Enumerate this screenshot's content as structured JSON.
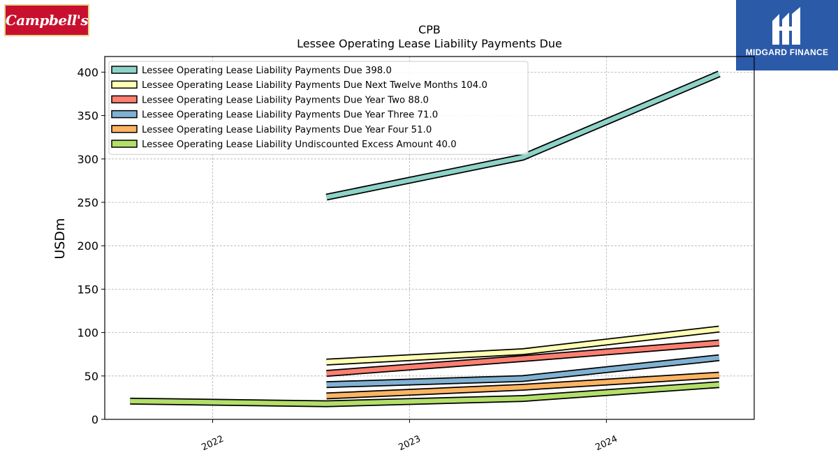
{
  "logos": {
    "left": {
      "text": "Campbell's",
      "bg": "#c8102e"
    },
    "right": {
      "text": "MIDGARD FINANCE",
      "bg": "#2b5aa8"
    }
  },
  "chart_data": {
    "type": "line",
    "title": "CPB",
    "subtitle": "Lessee Operating Lease Liability Payments Due",
    "ylabel": "USDm",
    "xlabel": "",
    "xlim": [
      "2021-06-15",
      "2024-10-01"
    ],
    "ylim": [
      0,
      418
    ],
    "yticks": [
      0,
      50,
      100,
      150,
      200,
      250,
      300,
      350,
      400
    ],
    "xticks": [
      "2022-01-01",
      "2023-01-01",
      "2024-01-01"
    ],
    "xtick_labels": [
      "2022",
      "2023",
      "2024"
    ],
    "grid": true,
    "legend_position": "top-left",
    "series": [
      {
        "name": "Lessee Operating Lease Liability Payments Due  398.0",
        "color": "#8dd3c7",
        "points": [
          [
            "2022-07-31",
            256
          ],
          [
            "2023-07-30",
            302
          ],
          [
            "2024-07-28",
            398
          ]
        ]
      },
      {
        "name": "Lessee Operating Lease Liability Payments Due Next Twelve Months  104.0",
        "color": "#ffffb3",
        "points": [
          [
            "2022-07-31",
            66
          ],
          [
            "2023-07-30",
            78
          ],
          [
            "2024-07-28",
            104
          ]
        ]
      },
      {
        "name": "Lessee Operating Lease Liability Payments Due Year Two  88.0",
        "color": "#fb8072",
        "points": [
          [
            "2022-07-31",
            53
          ],
          [
            "2023-07-30",
            70
          ],
          [
            "2024-07-28",
            88
          ]
        ]
      },
      {
        "name": "Lessee Operating Lease Liability Payments Due Year Three  71.0",
        "color": "#80b1d3",
        "points": [
          [
            "2022-07-31",
            40
          ],
          [
            "2023-07-30",
            47
          ],
          [
            "2024-07-28",
            71
          ]
        ]
      },
      {
        "name": "Lessee Operating Lease Liability Payments Due Year Four  51.0",
        "color": "#fdb462",
        "points": [
          [
            "2022-07-31",
            27
          ],
          [
            "2023-07-30",
            37
          ],
          [
            "2024-07-28",
            51
          ]
        ]
      },
      {
        "name": "Lessee Operating Lease Liability Undiscounted Excess Amount  40.0",
        "color": "#b3de69",
        "points": [
          [
            "2021-08-01",
            21
          ],
          [
            "2022-07-31",
            18
          ],
          [
            "2023-07-30",
            24
          ],
          [
            "2024-07-28",
            40
          ]
        ]
      }
    ]
  }
}
